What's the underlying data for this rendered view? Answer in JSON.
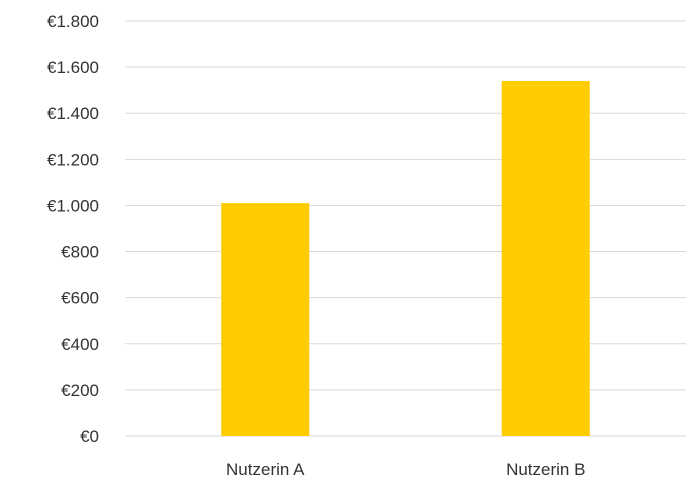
{
  "chart_data": {
    "type": "bar",
    "categories": [
      "Nutzerin A",
      "Nutzerin B"
    ],
    "values": [
      1010,
      1540
    ],
    "ylim": [
      0,
      1800
    ],
    "yticks": [
      0,
      200,
      400,
      600,
      800,
      1000,
      1200,
      1400,
      1600,
      1800
    ],
    "ytick_labels": [
      "€0",
      "€200",
      "€400",
      "€600",
      "€800",
      "€1.000",
      "€1.200",
      "€1.400",
      "€1.600",
      "€1.800"
    ],
    "grid": true,
    "legend": "none",
    "colors": {
      "bar": "#FFCC00",
      "grid": "#D9D9D9",
      "text": "#333333"
    }
  }
}
